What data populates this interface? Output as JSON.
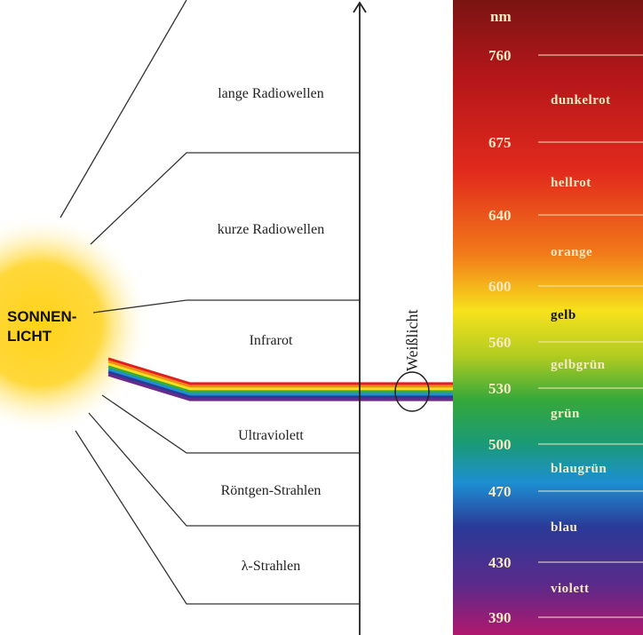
{
  "sun": {
    "lines": [
      "SONNEN-",
      "LICHT"
    ]
  },
  "bands": [
    "lange Radiowellen",
    "kurze Radiowellen",
    "Infrarot",
    "Ultraviolett",
    "Röntgen-Strahlen",
    "λ-Strahlen"
  ],
  "white_light": "Weißlicht",
  "spectrum": {
    "unit": "nm",
    "wavelengths": [
      "760",
      "675",
      "640",
      "600",
      "560",
      "530",
      "500",
      "470",
      "430",
      "390"
    ],
    "colors": [
      "dunkelrot",
      "hellrot",
      "orange",
      "gelb",
      "gelbgrün",
      "grün",
      "blaugrün",
      "blau",
      "violett"
    ]
  }
}
